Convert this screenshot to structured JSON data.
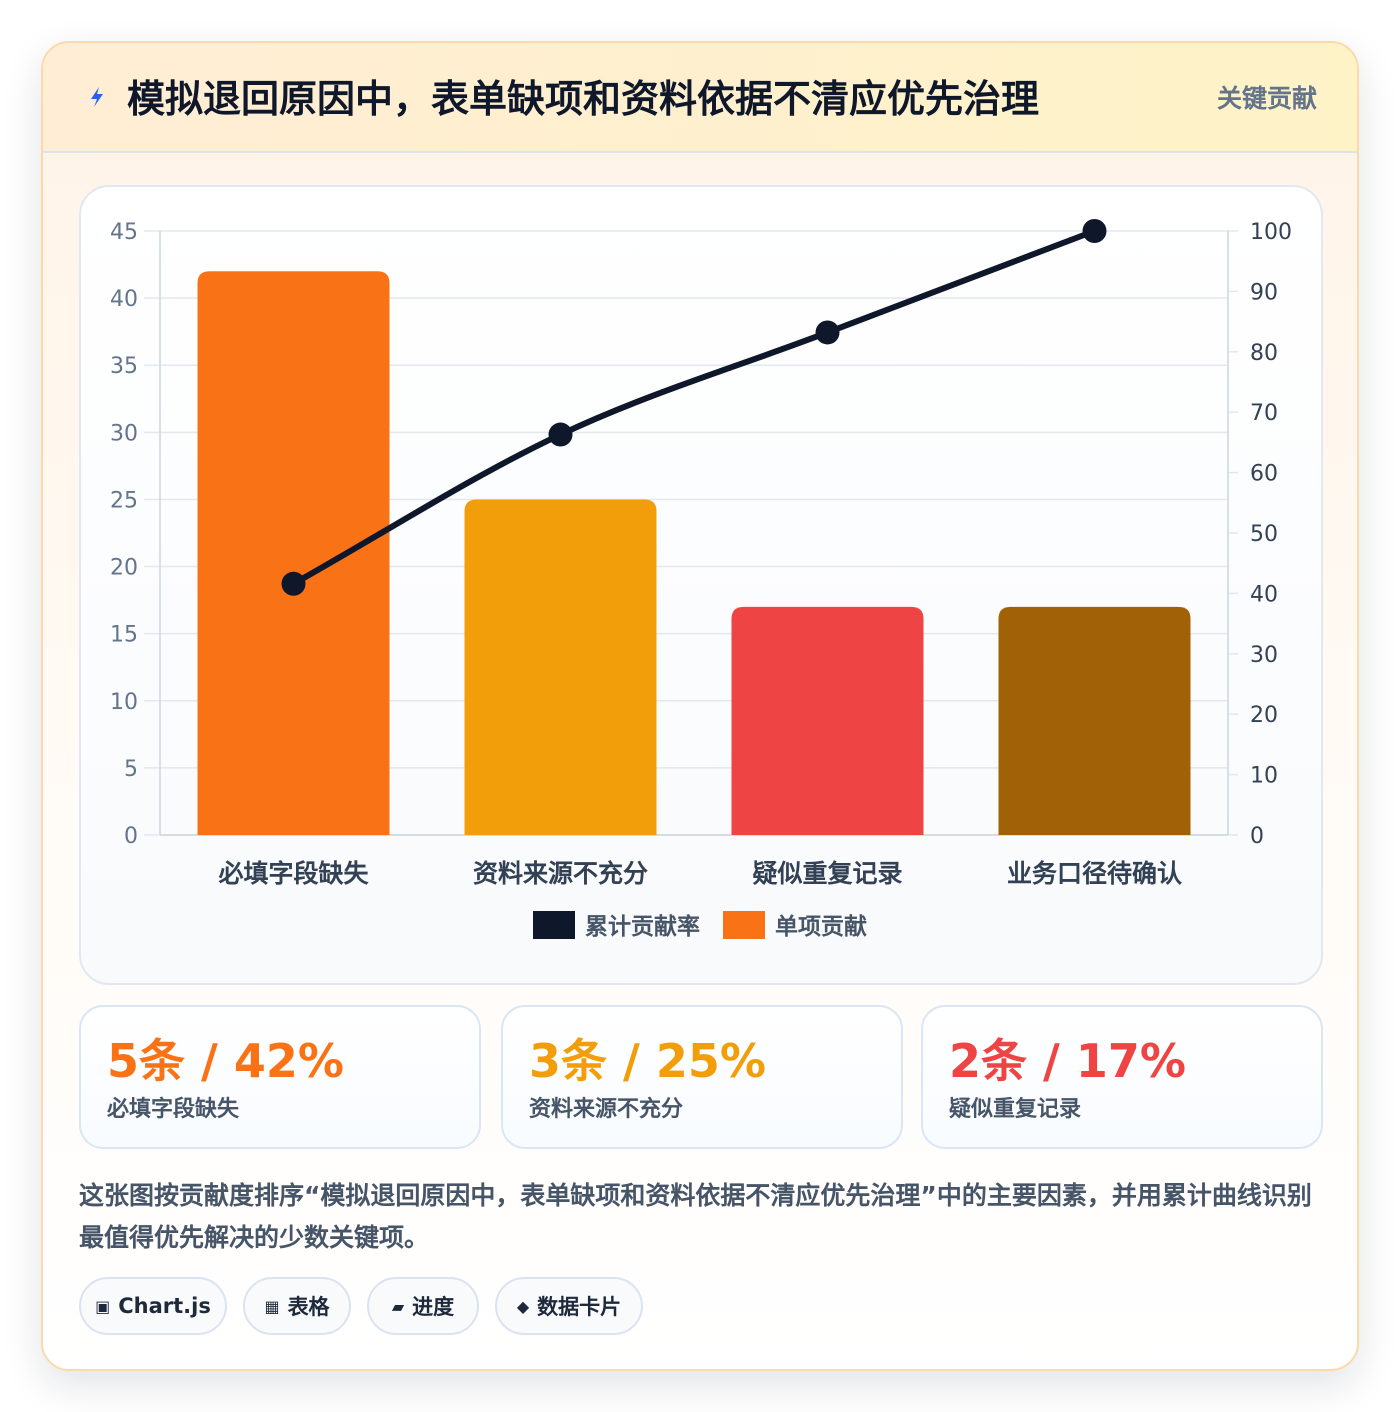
{
  "header": {
    "title": "模拟退回原因中，表单缺项和资料依据不清应优先治理",
    "badge": "关键贡献",
    "icon": "lightning-icon"
  },
  "chart_data": {
    "type": "bar",
    "categories": [
      "必填字段缺失",
      "资料来源不充分",
      "疑似重复记录",
      "业务口径待确认"
    ],
    "series": [
      {
        "name": "单项贡献",
        "type": "bar",
        "axis": "left",
        "values": [
          42,
          25,
          17,
          17
        ],
        "colors": [
          "#f97316",
          "#f29e0b",
          "#ef4444",
          "#a16207"
        ]
      },
      {
        "name": "累计贡献率",
        "type": "line",
        "axis": "right",
        "values": [
          41.6,
          66.3,
          83.2,
          100
        ],
        "color": "#0f172a"
      }
    ],
    "y_left": {
      "min": 0,
      "max": 45,
      "ticks": [
        0,
        5,
        10,
        15,
        20,
        25,
        30,
        35,
        40,
        45
      ]
    },
    "y_right": {
      "min": 0,
      "max": 100,
      "ticks": [
        0,
        10,
        20,
        30,
        40,
        50,
        60,
        70,
        80,
        90,
        100
      ]
    },
    "legend": [
      {
        "label": "累计贡献率",
        "color": "#0f172a"
      },
      {
        "label": "单项贡献",
        "color": "#f97316"
      }
    ],
    "legend_position": "bottom",
    "grid": true
  },
  "stats": [
    {
      "value": "5条 / 42%",
      "label": "必填字段缺失",
      "color": "#f97316"
    },
    {
      "value": "3条 / 25%",
      "label": "资料来源不充分",
      "color": "#f29e0b"
    },
    {
      "value": "2条 / 17%",
      "label": "疑似重复记录",
      "color": "#ef4444"
    }
  ],
  "description": "这张图按贡献度排序“模拟退回原因中，表单缺项和资料依据不清应优先治理”中的主要因素，并用累计曲线识别最值得优先解决的少数关键项。",
  "tags": [
    {
      "icon": "▣",
      "label": "Chart.js"
    },
    {
      "icon": "▦",
      "label": "表格"
    },
    {
      "icon": "▰",
      "label": "进度"
    },
    {
      "icon": "◆",
      "label": "数据卡片"
    }
  ]
}
